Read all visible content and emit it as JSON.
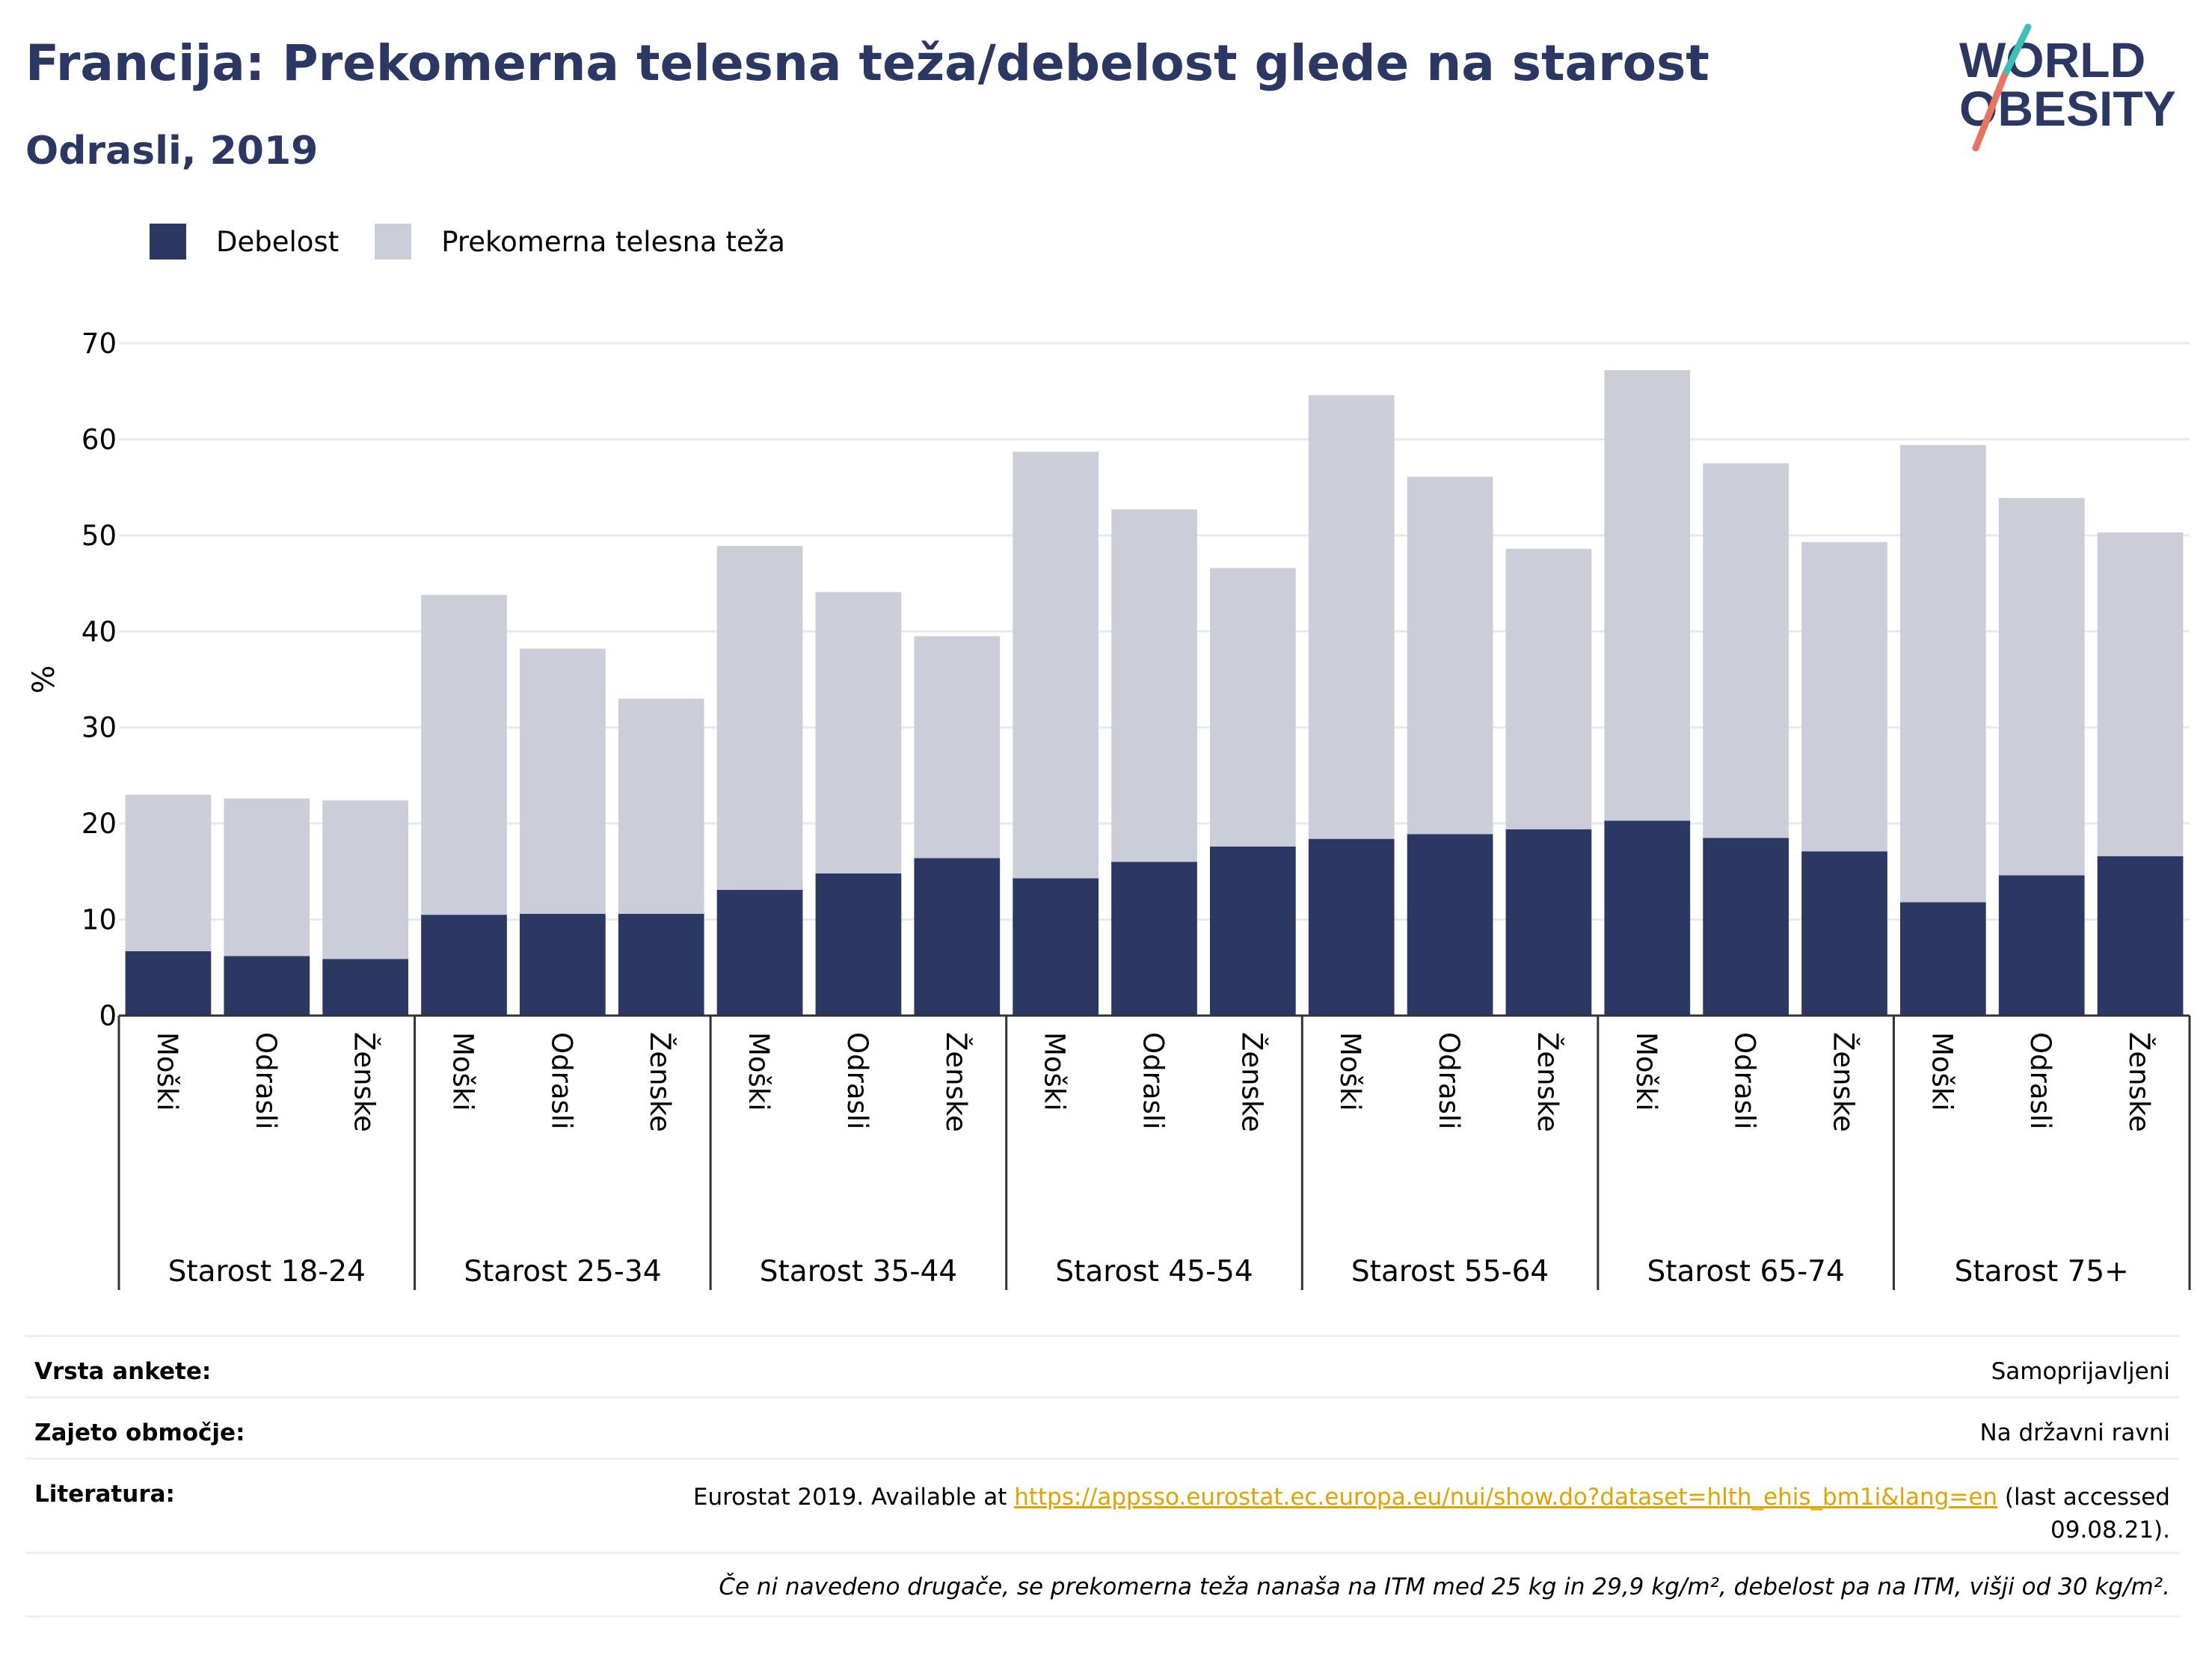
{
  "header": {
    "title": "Francija: Prekomerna telesna teža/debelost glede na starost",
    "subtitle": "Odrasli, 2019"
  },
  "logo": {
    "line1": "WORLD",
    "line2": "OBESITY"
  },
  "legend": {
    "obesity_label": "Debelost",
    "overweight_label": "Prekomerna telesna teža"
  },
  "colors": {
    "obesity": "#2b3863",
    "overweight": "#cbcdd8",
    "link": "#e1a300",
    "accent_teal": "#3dbfb8",
    "accent_coral": "#e8735f"
  },
  "chart_data": {
    "type": "bar",
    "stacked": true,
    "ylabel": "%",
    "ylim": [
      0,
      70
    ],
    "yticks": [
      0,
      10,
      20,
      30,
      40,
      50,
      60,
      70
    ],
    "grid": true,
    "legend_position": "top-left",
    "groups": [
      "Starost 18-24",
      "Starost 25-34",
      "Starost 35-44",
      "Starost 45-54",
      "Starost 55-64",
      "Starost 65-74",
      "Starost 75+"
    ],
    "subcategories": [
      "Moški",
      "Odrasli",
      "Ženske"
    ],
    "series": [
      {
        "name": "Debelost",
        "values": [
          6.7,
          6.2,
          5.9,
          10.5,
          10.6,
          10.6,
          13.1,
          14.8,
          16.4,
          14.3,
          16.0,
          17.6,
          18.4,
          18.9,
          19.4,
          20.3,
          18.5,
          17.1,
          11.8,
          14.6,
          16.6
        ]
      },
      {
        "name": "Prekomerna telesna teža",
        "values": [
          16.3,
          16.4,
          16.5,
          33.3,
          27.6,
          22.4,
          35.8,
          29.3,
          23.1,
          44.4,
          36.7,
          29.0,
          46.2,
          37.2,
          29.2,
          46.9,
          39.0,
          32.2,
          47.6,
          39.3,
          33.7
        ]
      }
    ]
  },
  "meta": {
    "survey_label": "Vrsta ankete:",
    "survey_value": "Samoprijavljeni",
    "coverage_label": "Zajeto območje:",
    "coverage_value": "Na državni ravni",
    "lit_label": "Literatura:",
    "lit_prefix": "Eurostat 2019. Available at ",
    "lit_url": "https://appsso.eurostat.ec.europa.eu/nui/show.do?dataset=hlth_ehis_bm1i&lang=en",
    "lit_suffix": " (last accessed",
    "lit_date": "09.08.21).",
    "note": "Če ni navedeno drugače, se prekomerna teža nanaša na ITM med 25 kg in 29,9 kg/m², debelost pa na ITM, višji od 30 kg/m²."
  }
}
